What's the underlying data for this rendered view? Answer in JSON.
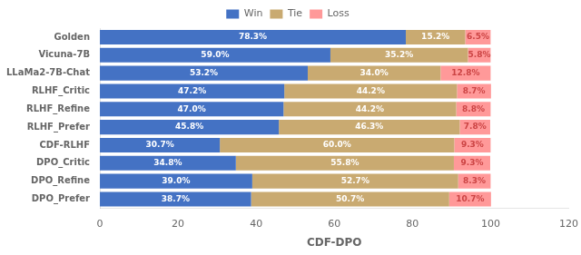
{
  "chart_data": {
    "type": "bar",
    "orientation": "horizontal",
    "stacked": true,
    "data_labels": true,
    "xlabel": "CDF-DPO",
    "categories": [
      "Golden",
      "Vicuna-7B",
      "LLaMa2-7B-Chat",
      "RLHF_Critic",
      "RLHF_Refine",
      "RLHF_Prefer",
      "CDF-RLHF",
      "DPO_Critic",
      "DPO_Refine",
      "DPO_Prefer"
    ],
    "series": [
      {
        "name": "Win",
        "color": "#4472C4",
        "values": [
          78.3,
          59.0,
          53.2,
          47.2,
          47.0,
          45.8,
          30.7,
          34.8,
          39.0,
          38.7
        ],
        "value_labels": [
          "78.3%",
          "59.0%",
          "53.2%",
          "47.2%",
          "47.0%",
          "45.8%",
          "30.7%",
          "34.8%",
          "39.0%",
          "38.7%"
        ]
      },
      {
        "name": "Tie",
        "color": "#C9AA71",
        "values": [
          15.2,
          35.2,
          34.0,
          44.2,
          44.2,
          46.3,
          60.0,
          55.8,
          52.7,
          50.7
        ],
        "value_labels": [
          "15.2%",
          "35.2%",
          "34.0%",
          "44.2%",
          "44.2%",
          "46.3%",
          "60.0%",
          "55.8%",
          "52.7%",
          "50.7%"
        ]
      },
      {
        "name": "Loss",
        "color": "#FF9999",
        "values": [
          6.5,
          5.8,
          12.8,
          8.7,
          8.8,
          7.8,
          9.3,
          9.3,
          8.3,
          10.7
        ],
        "value_labels": [
          "6.5%",
          "5.8%",
          "12.8%",
          "8.7%",
          "8.8%",
          "7.8%",
          "9.3%",
          "9.3%",
          "8.3%",
          "10.7%"
        ]
      }
    ],
    "xlim": [
      0,
      120
    ],
    "xticks": [
      0,
      20,
      40,
      60,
      80,
      100,
      120
    ],
    "grid": false,
    "legend": "top"
  }
}
